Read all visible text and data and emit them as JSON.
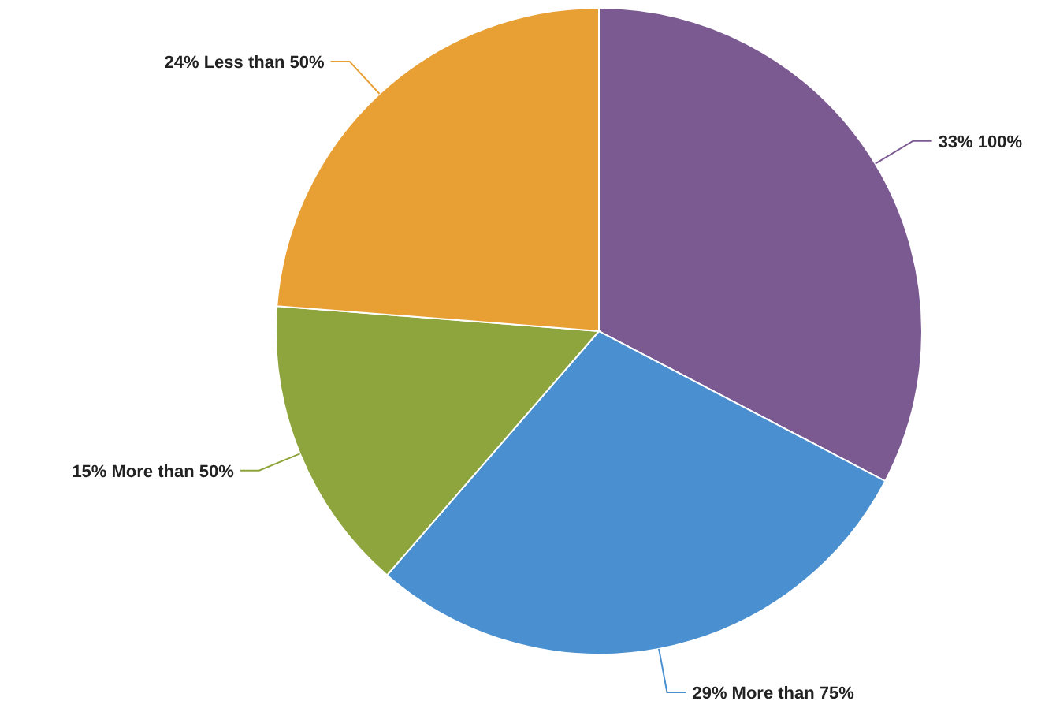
{
  "chart_data": {
    "type": "pie",
    "categories": [
      "100%",
      "More than 75%",
      "More than 50%",
      "Less than 50%"
    ],
    "values": [
      33,
      29,
      15,
      24
    ],
    "value_labels": [
      "33%",
      "29%",
      "15%",
      "24%"
    ],
    "colors": [
      "#7b5a92",
      "#4a90d0",
      "#8ea43c",
      "#e8a035"
    ]
  }
}
